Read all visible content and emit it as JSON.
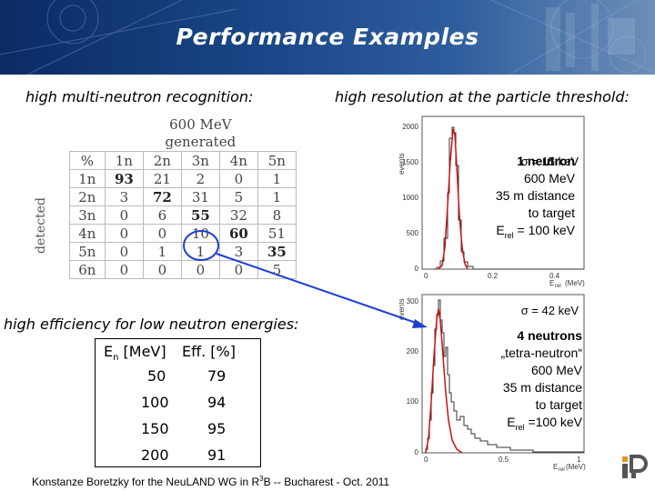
{
  "slide": {
    "title": "Performance Examples",
    "colors": {
      "header_bg": "#1c4a8c",
      "fit_line": "#cc1111",
      "histogram": "#333333",
      "arrow": "#1f3fd1"
    }
  },
  "left": {
    "heading": "high multi-neutron recognition:",
    "matrix": {
      "energy": "600 MeV",
      "generated": "generated",
      "corner": "%",
      "detected": "detected",
      "columns": [
        "1n",
        "2n",
        "3n",
        "4n",
        "5n"
      ],
      "rows": [
        {
          "label": "1n",
          "cells": [
            "93",
            "21",
            "2",
            "0",
            "1"
          ]
        },
        {
          "label": "2n",
          "cells": [
            "3",
            "72",
            "31",
            "5",
            "1"
          ]
        },
        {
          "label": "3n",
          "cells": [
            "0",
            "6",
            "55",
            "32",
            "8"
          ]
        },
        {
          "label": "4n",
          "cells": [
            "0",
            "0",
            "10",
            "60",
            "51"
          ]
        },
        {
          "label": "5n",
          "cells": [
            "0",
            "1",
            "1",
            "3",
            "35"
          ]
        },
        {
          "label": "6n",
          "cells": [
            "0",
            "0",
            "0",
            "0",
            "5"
          ]
        }
      ]
    },
    "efficiency": {
      "heading": "high efficiency for low neutron energies:",
      "col1": "E",
      "col1_sub": "n",
      "col1_unit": " [MeV]",
      "col2": "Eff. [%]",
      "rows": [
        {
          "energy": "50",
          "eff": "79"
        },
        {
          "energy": "100",
          "eff": "94"
        },
        {
          "energy": "150",
          "eff": "95"
        },
        {
          "energy": "200",
          "eff": "91"
        }
      ]
    }
  },
  "right": {
    "heading": "high resolution at the particle threshold:",
    "plot1": {
      "sigma": "σ = 15 keV",
      "ylabel": "events",
      "yticks": [
        "2000",
        "1500",
        "1000",
        "500",
        "0"
      ],
      "xticks": [
        "0",
        "0.2",
        "0.4"
      ],
      "xunit": "(MeV)",
      "xlabel_main": "E",
      "xlabel_sub": "rel",
      "annotation": [
        "1 neutron",
        "600 MeV",
        "35 m distance",
        "to target"
      ],
      "erel_main": "E",
      "erel_sub": "rel",
      "erel_value": " = 100 keV"
    },
    "plot2": {
      "sigma": "σ = 42 keV",
      "ylabel": "events",
      "yticks": [
        "300",
        "200",
        "100",
        "0"
      ],
      "xticks": [
        "0",
        "0.5",
        "1"
      ],
      "xlabel": "E",
      "xlabel_sub": "rel",
      "xunit": " (MeV)",
      "annotation": [
        "4 neutrons",
        "„tetra-neutron“",
        "600 MeV",
        "35 m distance",
        "to target"
      ],
      "erel_main": "E",
      "erel_sub": "rel",
      "erel_value": " =100 keV"
    }
  },
  "footer": {
    "text_a": "Konstanze Boretzky for the Neu",
    "text_b": "LAND WG in R",
    "sup": "3",
    "text_c": "B -- Bucharest - Oct. 2011"
  },
  "logo_icon": "institute-logo-icon"
}
